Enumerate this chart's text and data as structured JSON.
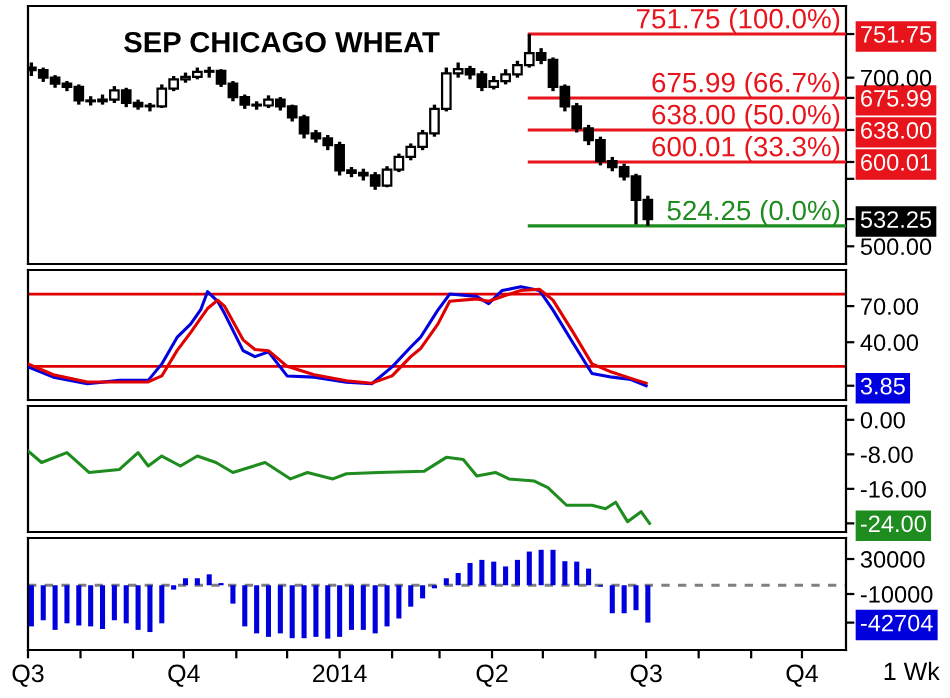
{
  "chart_data": [
    {
      "type": "candlestick",
      "title": "SEP CHICAGO WHEAT",
      "x": [
        "2013-07-03",
        "2013-07-10",
        "2013-07-17",
        "2013-07-24",
        "2013-07-31",
        "2013-08-07",
        "2013-08-14",
        "2013-08-21",
        "2013-08-28",
        "2013-09-04",
        "2013-09-11",
        "2013-09-18",
        "2013-09-25",
        "2013-10-02",
        "2013-10-09",
        "2013-10-16",
        "2013-10-23",
        "2013-10-30",
        "2013-11-06",
        "2013-11-13",
        "2013-11-20",
        "2013-11-27",
        "2013-12-04",
        "2013-12-11",
        "2013-12-18",
        "2013-12-25",
        "2014-01-01",
        "2014-01-08",
        "2014-01-15",
        "2014-01-22",
        "2014-01-29",
        "2014-02-05",
        "2014-02-12",
        "2014-02-19",
        "2014-02-26",
        "2014-03-05",
        "2014-03-12",
        "2014-03-19",
        "2014-03-26",
        "2014-04-02",
        "2014-04-09",
        "2014-04-16",
        "2014-04-23",
        "2014-04-30",
        "2014-05-07",
        "2014-05-14",
        "2014-05-21",
        "2014-05-28",
        "2014-06-04",
        "2014-06-11",
        "2014-06-18",
        "2014-06-25",
        "2014-07-02"
      ],
      "ohlc": [
        [
          712,
          718,
          702,
          709
        ],
        [
          709,
          712,
          695,
          700
        ],
        [
          700,
          703,
          688,
          693
        ],
        [
          693,
          696,
          684,
          689
        ],
        [
          689,
          692,
          668,
          673
        ],
        [
          673,
          678,
          667,
          672
        ],
        [
          672,
          680,
          668,
          674
        ],
        [
          674,
          690,
          670,
          685
        ],
        [
          685,
          688,
          665,
          670
        ],
        [
          670,
          674,
          662,
          666
        ],
        [
          666,
          670,
          660,
          666
        ],
        [
          666,
          692,
          664,
          687
        ],
        [
          687,
          702,
          684,
          698
        ],
        [
          698,
          706,
          694,
          701
        ],
        [
          701,
          712,
          698,
          707
        ],
        [
          707,
          713,
          700,
          708
        ],
        [
          708,
          710,
          689,
          693
        ],
        [
          693,
          696,
          672,
          677
        ],
        [
          677,
          680,
          663,
          668
        ],
        [
          668,
          672,
          662,
          667
        ],
        [
          667,
          679,
          664,
          674
        ],
        [
          674,
          677,
          661,
          666
        ],
        [
          666,
          668,
          648,
          653
        ],
        [
          653,
          656,
          628,
          634
        ],
        [
          634,
          638,
          623,
          628
        ],
        [
          628,
          632,
          614,
          620
        ],
        [
          620,
          624,
          584,
          590
        ],
        [
          590,
          594,
          582,
          587
        ],
        [
          587,
          592,
          578,
          584
        ],
        [
          584,
          588,
          567,
          572
        ],
        [
          572,
          595,
          570,
          591
        ],
        [
          591,
          610,
          588,
          606
        ],
        [
          606,
          622,
          602,
          618
        ],
        [
          618,
          638,
          614,
          634
        ],
        [
          634,
          668,
          630,
          663
        ],
        [
          663,
          712,
          660,
          705
        ],
        [
          705,
          718,
          700,
          710
        ],
        [
          710,
          714,
          698,
          704
        ],
        [
          704,
          708,
          684,
          689
        ],
        [
          689,
          702,
          686,
          696
        ],
        [
          696,
          710,
          692,
          704
        ],
        [
          704,
          720,
          700,
          715
        ],
        [
          715,
          751.75,
          712,
          729
        ],
        [
          729,
          735,
          716,
          721
        ],
        [
          721,
          724,
          684,
          689
        ],
        [
          689,
          692,
          660,
          666
        ],
        [
          666,
          670,
          635,
          640
        ],
        [
          640,
          644,
          620,
          626
        ],
        [
          626,
          630,
          596,
          601
        ],
        [
          601,
          606,
          589,
          594
        ],
        [
          594,
          598,
          578,
          583
        ],
        [
          583,
          586,
          526,
          555
        ],
        [
          555,
          560,
          524.25,
          532.25
        ]
      ],
      "series": [
        {
          "type": "line",
          "name": "751.75 (100.0%)",
          "color": "#e8141c",
          "x": [
            "2014-04-23",
            "2014-10-27"
          ],
          "values": [
            751.75,
            751.75
          ]
        },
        {
          "type": "line",
          "name": "675.99 (66.7%)",
          "color": "#e8141c",
          "x": [
            "2014-04-23",
            "2014-10-27"
          ],
          "values": [
            675.99,
            675.99
          ]
        },
        {
          "type": "line",
          "name": "638.00 (50.0%)",
          "color": "#e8141c",
          "x": [
            "2014-04-23",
            "2014-10-27"
          ],
          "values": [
            638.0,
            638.0
          ]
        },
        {
          "type": "line",
          "name": "600.01 (33.3%)",
          "color": "#e8141c",
          "x": [
            "2014-04-23",
            "2014-10-27"
          ],
          "values": [
            600.01,
            600.01
          ]
        },
        {
          "type": "line",
          "name": "524.25 (0.0%)",
          "color": "#1e8c1e",
          "x": [
            "2014-04-23",
            "2014-10-27"
          ],
          "values": [
            524.25,
            524.25
          ]
        }
      ],
      "legend": "right",
      "xlim": [
        "2013-07-01",
        "2014-10-27"
      ],
      "ylim": [
        479,
        785
      ],
      "yticks": [
        {
          "value": 500,
          "label": "500.00"
        },
        {
          "value": 532.25,
          "label": "532.25"
        },
        {
          "value": 580,
          "label": null
        },
        {
          "value": 600.01,
          "label": "600.01"
        },
        {
          "value": 638,
          "label": "638.00"
        },
        {
          "value": 675.99,
          "label": "675.99"
        },
        {
          "value": 700,
          "label": "700.00"
        },
        {
          "value": 751.75,
          "label": "751.75"
        }
      ],
      "tick_labels": "y"
    },
    {
      "type": "line",
      "x": [
        "2013-07-01",
        "2013-07-16",
        "2013-08-05",
        "2013-08-24",
        "2013-09-10",
        "2013-09-18",
        "2013-09-27",
        "2013-10-05",
        "2013-10-11",
        "2013-10-15",
        "2013-10-21",
        "2013-10-25",
        "2013-11-05",
        "2013-11-12",
        "2013-11-20",
        "2013-12-01",
        "2013-12-17",
        "2014-01-05",
        "2014-01-20",
        "2014-02-01",
        "2014-02-12",
        "2014-02-18",
        "2014-02-28",
        "2014-03-07",
        "2014-03-23",
        "2014-03-30",
        "2014-04-07",
        "2014-04-18",
        "2014-04-29",
        "2014-05-07",
        "2014-05-19",
        "2014-05-30",
        "2014-06-11",
        "2014-06-22",
        "2014-07-01"
      ],
      "series": [
        {
          "color": "#0000e0",
          "values": [
            19.5,
            11,
            5.5,
            8.3,
            8.3,
            22,
            44,
            55,
            67,
            82,
            74,
            64,
            33,
            28,
            32,
            12,
            11,
            6.7,
            5.5,
            19.5,
            36,
            44.5,
            66.7,
            80,
            78,
            72,
            83,
            86,
            83,
            66.7,
            39,
            14,
            11,
            9,
            3.85
          ]
        },
        {
          "color": "#e00000",
          "values": [
            22,
            13,
            7,
            7,
            7,
            12,
            33,
            48,
            60,
            68,
            75,
            70,
            42,
            34,
            33,
            20,
            13,
            8,
            6,
            12,
            28,
            35,
            55,
            74,
            76,
            74,
            78,
            83,
            84,
            75,
            48,
            22,
            15,
            10,
            6
          ]
        }
      ],
      "ref_lines": [
        {
          "axis": "y",
          "value": 80,
          "color": "#e00000"
        },
        {
          "axis": "y",
          "value": 20,
          "color": "#e00000"
        }
      ],
      "xlim": [
        "2013-07-01",
        "2014-10-27"
      ],
      "ylim": [
        -8,
        100
      ],
      "yticks": [
        {
          "value": 3.85,
          "label": "3.85"
        },
        {
          "value": 40,
          "label": "40.00"
        },
        {
          "value": 70,
          "label": "70.00"
        }
      ],
      "tick_labels": "y"
    },
    {
      "type": "line",
      "x": [
        "2013-07-01",
        "2013-07-09",
        "2013-07-24",
        "2013-08-06",
        "2013-08-24",
        "2013-09-04",
        "2013-09-10",
        "2013-09-18",
        "2013-09-29",
        "2013-10-09",
        "2013-10-20",
        "2013-10-30",
        "2013-11-18",
        "2013-12-03",
        "2013-12-13",
        "2013-12-28",
        "2014-01-05",
        "2014-01-24",
        "2014-02-20",
        "2014-03-05",
        "2014-03-15",
        "2014-03-23",
        "2014-04-03",
        "2014-04-11",
        "2014-04-26",
        "2014-05-04",
        "2014-05-15",
        "2014-05-30",
        "2014-06-07",
        "2014-06-13",
        "2014-06-20",
        "2014-06-28",
        "2014-07-03"
      ],
      "series": [
        {
          "color": "#1e8c1e",
          "values": [
            -7.2,
            -9.9,
            -7.6,
            -12.2,
            -11.5,
            -7.6,
            -10.7,
            -8.4,
            -10.7,
            -8.4,
            -9.9,
            -12.2,
            -9.9,
            -13.7,
            -12.2,
            -13.7,
            -12.5,
            -12.2,
            -11.9,
            -8.7,
            -9.2,
            -13,
            -12.2,
            -13.7,
            -14.2,
            -15.7,
            -19.8,
            -19.8,
            -20.6,
            -19.1,
            -23.6,
            -21.3,
            -24
          ]
        }
      ],
      "xlim": [
        "2013-07-01",
        "2014-10-27"
      ],
      "ylim": [
        -26,
        3.2
      ],
      "yticks": [
        {
          "value": -24,
          "label": "-24.00"
        },
        {
          "value": -16,
          "label": "-16.00"
        },
        {
          "value": -8,
          "label": "-8.00"
        },
        {
          "value": 0,
          "label": "0.00"
        }
      ],
      "tick_labels": "y"
    },
    {
      "type": "bar",
      "color": "#0000dd",
      "x": [
        "2013-07-03",
        "2013-07-10",
        "2013-07-17",
        "2013-07-24",
        "2013-07-31",
        "2013-08-07",
        "2013-08-14",
        "2013-08-21",
        "2013-08-28",
        "2013-09-04",
        "2013-09-11",
        "2013-09-18",
        "2013-09-25",
        "2013-10-02",
        "2013-10-09",
        "2013-10-16",
        "2013-10-23",
        "2013-10-30",
        "2013-11-06",
        "2013-11-13",
        "2013-11-20",
        "2013-11-27",
        "2013-12-04",
        "2013-12-11",
        "2013-12-18",
        "2013-12-25",
        "2014-01-01",
        "2014-01-08",
        "2014-01-15",
        "2014-01-22",
        "2014-01-29",
        "2014-02-05",
        "2014-02-12",
        "2014-02-19",
        "2014-02-26",
        "2014-03-05",
        "2014-03-12",
        "2014-03-19",
        "2014-03-26",
        "2014-04-02",
        "2014-04-09",
        "2014-04-16",
        "2014-04-23",
        "2014-04-30",
        "2014-05-07",
        "2014-05-14",
        "2014-05-21",
        "2014-05-28",
        "2014-06-04",
        "2014-06-11",
        "2014-06-18",
        "2014-06-25",
        "2014-07-02"
      ],
      "values": [
        -47000,
        -40000,
        -51000,
        -43500,
        -46000,
        -47000,
        -50000,
        -40000,
        -43500,
        -51000,
        -53500,
        -43500,
        -5000,
        8000,
        8000,
        12500,
        2500,
        -21000,
        -47000,
        -55000,
        -59000,
        -55000,
        -60500,
        -60500,
        -59000,
        -61000,
        -59000,
        -51000,
        -51000,
        -55000,
        -47000,
        -38000,
        -24500,
        -15000,
        -3500,
        8000,
        14000,
        25500,
        29000,
        27000,
        21500,
        29000,
        38500,
        40500,
        40500,
        27500,
        27000,
        19000,
        -1500,
        -32000,
        -32000,
        -28500,
        -42704
      ],
      "ref_lines": [
        {
          "axis": "y",
          "value": 0,
          "color": "#808080",
          "line_style": "dashed"
        }
      ],
      "annotations": [
        "1 Wk"
      ],
      "xlim": [
        "2013-07-01",
        "2014-10-27"
      ],
      "ylim": [
        -74000,
        54000
      ],
      "xticks": [
        {
          "value": "2013-07-01",
          "label": "Q3"
        },
        {
          "value": "2013-08-01",
          "label": null
        },
        {
          "value": "2013-09-01",
          "label": null
        },
        {
          "value": "2013-10-01",
          "label": "Q4"
        },
        {
          "value": "2013-11-01",
          "label": null
        },
        {
          "value": "2013-12-01",
          "label": null
        },
        {
          "value": "2014-01-01",
          "label": "2014"
        },
        {
          "value": "2014-02-01",
          "label": null
        },
        {
          "value": "2014-03-01",
          "label": null
        },
        {
          "value": "2014-04-01",
          "label": "Q2"
        },
        {
          "value": "2014-05-01",
          "label": null
        },
        {
          "value": "2014-06-01",
          "label": null
        },
        {
          "value": "2014-07-01",
          "label": "Q3"
        },
        {
          "value": "2014-08-01",
          "label": null
        },
        {
          "value": "2014-09-01",
          "label": null
        },
        {
          "value": "2014-10-01",
          "label": "Q4"
        }
      ],
      "yticks": [
        {
          "value": -42704,
          "label": "-42704"
        },
        {
          "value": -10000,
          "label": "-10000"
        },
        {
          "value": 30000,
          "label": "30000"
        }
      ]
    }
  ]
}
